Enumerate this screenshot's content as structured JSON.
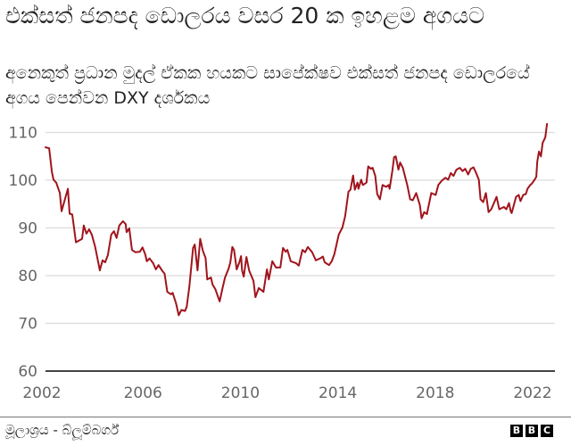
{
  "header": {
    "title": "එක්සත් ජනපද ඩොලරය වසර 20 ක ඉහළම අගයට",
    "subtitle": "අනෙකුත් ප්‍රධාන මුදල් ඒකක හයකට සාපේක්ෂව එක්සත් ජනපද ඩොලරයේ අගය පෙන්වන DXY දර්ශකය"
  },
  "footer": {
    "source": "මූලාශ්‍රය - බ්ලූම්බර්ග්",
    "logo_letters": [
      "B",
      "B",
      "C"
    ]
  },
  "colors": {
    "line": "#a0141c",
    "grid": "#dcdcdc",
    "axis": "#444444",
    "tick_text": "#666666"
  },
  "chart_data": {
    "type": "line",
    "title": "එක්සත් ජනපද ඩොලරය වසර 20 ක ඉහළම අගයට",
    "subtitle": "අනෙකුත් ප්‍රධාන මුදල් ඒකක හයකට සාපේක්ෂව එක්සත් ජනපද ඩොලරයේ අගය පෙන්වන DXY දර්ශකය",
    "xlabel": "",
    "ylabel": "",
    "xlim": [
      2002,
      2023.2
    ],
    "ylim": [
      60,
      110
    ],
    "yticks": [
      60,
      70,
      80,
      90,
      100,
      110
    ],
    "xticks": [
      2002,
      2006,
      2010,
      2014,
      2018,
      2022
    ],
    "grid": true,
    "legend": null,
    "series": [
      {
        "name": "DXY",
        "points": [
          [
            2002.0,
            106.9
          ],
          [
            2002.15,
            106.7
          ],
          [
            2002.26,
            101.8
          ],
          [
            2002.33,
            100.1
          ],
          [
            2002.44,
            99.5
          ],
          [
            2002.59,
            97.3
          ],
          [
            2002.66,
            93.5
          ],
          [
            2002.92,
            98.2
          ],
          [
            2002.99,
            93.0
          ],
          [
            2003.1,
            92.8
          ],
          [
            2003.25,
            87.0
          ],
          [
            2003.5,
            87.7
          ],
          [
            2003.57,
            90.5
          ],
          [
            2003.68,
            88.8
          ],
          [
            2003.79,
            89.7
          ],
          [
            2003.9,
            88.6
          ],
          [
            2004.04,
            86.0
          ],
          [
            2004.23,
            81.1
          ],
          [
            2004.34,
            83.2
          ],
          [
            2004.45,
            82.8
          ],
          [
            2004.56,
            84.3
          ],
          [
            2004.7,
            88.6
          ],
          [
            2004.81,
            89.3
          ],
          [
            2004.92,
            87.9
          ],
          [
            2005.03,
            90.5
          ],
          [
            2005.18,
            91.4
          ],
          [
            2005.29,
            90.8
          ],
          [
            2005.33,
            89.1
          ],
          [
            2005.44,
            89.9
          ],
          [
            2005.55,
            85.4
          ],
          [
            2005.69,
            84.9
          ],
          [
            2005.87,
            85.0
          ],
          [
            2005.98,
            85.9
          ],
          [
            2006.09,
            84.5
          ],
          [
            2006.16,
            83.0
          ],
          [
            2006.27,
            83.6
          ],
          [
            2006.42,
            82.6
          ],
          [
            2006.53,
            81.3
          ],
          [
            2006.64,
            82.2
          ],
          [
            2006.78,
            81.1
          ],
          [
            2006.89,
            80.4
          ],
          [
            2007.0,
            76.6
          ],
          [
            2007.15,
            76.1
          ],
          [
            2007.22,
            76.4
          ],
          [
            2007.36,
            74.2
          ],
          [
            2007.47,
            71.7
          ],
          [
            2007.58,
            72.8
          ],
          [
            2007.73,
            72.6
          ],
          [
            2007.8,
            73.5
          ],
          [
            2007.91,
            77.8
          ],
          [
            2008.06,
            85.8
          ],
          [
            2008.13,
            86.5
          ],
          [
            2008.24,
            81.1
          ],
          [
            2008.35,
            87.7
          ],
          [
            2008.46,
            85.2
          ],
          [
            2008.57,
            83.7
          ],
          [
            2008.64,
            79.2
          ],
          [
            2008.79,
            79.6
          ],
          [
            2008.86,
            78.1
          ],
          [
            2008.97,
            77.2
          ],
          [
            2009.15,
            74.6
          ],
          [
            2009.26,
            77.2
          ],
          [
            2009.37,
            79.6
          ],
          [
            2009.52,
            81.5
          ],
          [
            2009.59,
            82.8
          ],
          [
            2009.67,
            86.0
          ],
          [
            2009.74,
            85.4
          ],
          [
            2009.85,
            81.3
          ],
          [
            2009.96,
            82.8
          ],
          [
            2010.03,
            84.1
          ],
          [
            2010.07,
            81.1
          ],
          [
            2010.14,
            79.8
          ],
          [
            2010.25,
            83.9
          ],
          [
            2010.36,
            81.1
          ],
          [
            2010.54,
            78.9
          ],
          [
            2010.62,
            75.5
          ],
          [
            2010.76,
            77.4
          ],
          [
            2010.95,
            76.6
          ],
          [
            2011.09,
            81.3
          ],
          [
            2011.17,
            79.2
          ],
          [
            2011.31,
            83.0
          ],
          [
            2011.46,
            81.7
          ],
          [
            2011.64,
            81.7
          ],
          [
            2011.75,
            85.8
          ],
          [
            2011.86,
            85.0
          ],
          [
            2011.93,
            85.4
          ],
          [
            2012.07,
            83.0
          ],
          [
            2012.29,
            82.6
          ],
          [
            2012.4,
            82.1
          ],
          [
            2012.55,
            85.4
          ],
          [
            2012.66,
            84.9
          ],
          [
            2012.77,
            86.0
          ],
          [
            2012.95,
            84.9
          ],
          [
            2013.1,
            83.2
          ],
          [
            2013.28,
            83.6
          ],
          [
            2013.39,
            84.0
          ],
          [
            2013.46,
            82.8
          ],
          [
            2013.64,
            82.2
          ],
          [
            2013.75,
            83.0
          ],
          [
            2013.86,
            84.5
          ],
          [
            2014.04,
            88.6
          ],
          [
            2014.19,
            90.1
          ],
          [
            2014.3,
            92.4
          ],
          [
            2014.44,
            97.6
          ],
          [
            2014.52,
            98.0
          ],
          [
            2014.63,
            101.0
          ],
          [
            2014.7,
            98.0
          ],
          [
            2014.81,
            99.5
          ],
          [
            2014.85,
            98.2
          ],
          [
            2014.96,
            100.1
          ],
          [
            2015.03,
            99.0
          ],
          [
            2015.18,
            99.5
          ],
          [
            2015.25,
            102.9
          ],
          [
            2015.36,
            102.4
          ],
          [
            2015.43,
            102.6
          ],
          [
            2015.54,
            100.9
          ],
          [
            2015.62,
            97.1
          ],
          [
            2015.73,
            96.0
          ],
          [
            2015.84,
            99.0
          ],
          [
            2015.98,
            98.6
          ],
          [
            2016.09,
            99.0
          ],
          [
            2016.13,
            98.2
          ],
          [
            2016.24,
            102.0
          ],
          [
            2016.31,
            104.8
          ],
          [
            2016.38,
            105.0
          ],
          [
            2016.49,
            102.2
          ],
          [
            2016.56,
            103.7
          ],
          [
            2016.67,
            102.6
          ],
          [
            2016.86,
            98.8
          ],
          [
            2016.97,
            96.0
          ],
          [
            2017.08,
            95.8
          ],
          [
            2017.22,
            97.3
          ],
          [
            2017.37,
            94.8
          ],
          [
            2017.44,
            92.0
          ],
          [
            2017.55,
            93.3
          ],
          [
            2017.66,
            92.9
          ],
          [
            2017.84,
            97.3
          ],
          [
            2018.02,
            96.9
          ],
          [
            2018.13,
            99.0
          ],
          [
            2018.27,
            99.9
          ],
          [
            2018.42,
            100.5
          ],
          [
            2018.53,
            100.1
          ],
          [
            2018.64,
            101.5
          ],
          [
            2018.75,
            100.9
          ],
          [
            2018.87,
            102.2
          ],
          [
            2019.01,
            102.6
          ],
          [
            2019.12,
            101.9
          ],
          [
            2019.23,
            102.4
          ],
          [
            2019.35,
            101.2
          ],
          [
            2019.46,
            102.4
          ],
          [
            2019.57,
            102.7
          ],
          [
            2019.68,
            101.5
          ],
          [
            2019.79,
            100.1
          ],
          [
            2019.86,
            96.0
          ],
          [
            2019.97,
            95.4
          ],
          [
            2020.08,
            97.3
          ],
          [
            2020.19,
            93.3
          ],
          [
            2020.3,
            93.9
          ],
          [
            2020.52,
            96.5
          ],
          [
            2020.63,
            93.9
          ],
          [
            2020.82,
            94.4
          ],
          [
            2020.92,
            93.9
          ],
          [
            2021.03,
            95.2
          ],
          [
            2021.1,
            93.5
          ],
          [
            2021.14,
            93.1
          ],
          [
            2021.32,
            96.5
          ],
          [
            2021.43,
            96.9
          ],
          [
            2021.5,
            95.6
          ],
          [
            2021.61,
            96.9
          ],
          [
            2021.72,
            97.1
          ],
          [
            2021.79,
            98.2
          ],
          [
            2021.9,
            99.0
          ],
          [
            2021.97,
            99.3
          ],
          [
            2022.08,
            100.1
          ],
          [
            2022.15,
            100.7
          ],
          [
            2022.19,
            103.9
          ],
          [
            2022.26,
            106.0
          ],
          [
            2022.34,
            105.0
          ],
          [
            2022.41,
            107.8
          ],
          [
            2022.52,
            109.0
          ],
          [
            2022.59,
            111.8
          ]
        ]
      }
    ]
  }
}
